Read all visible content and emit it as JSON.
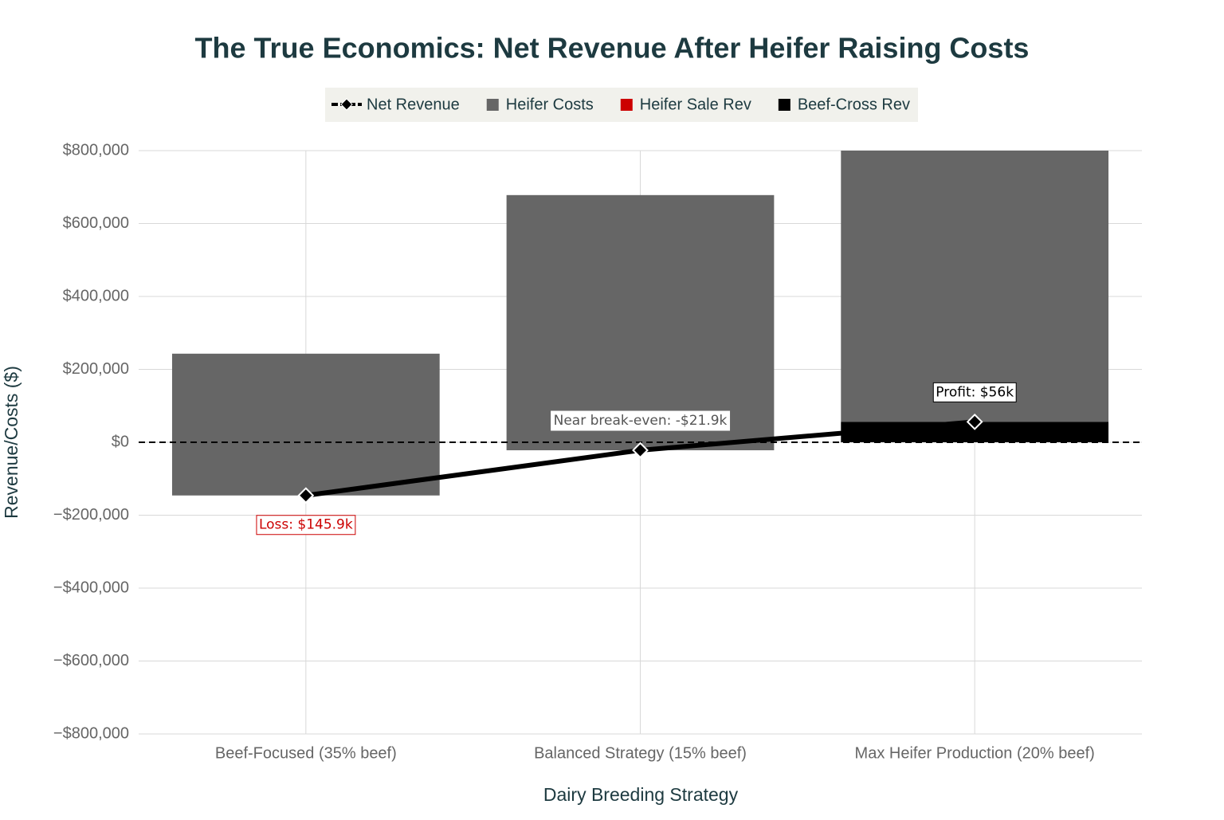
{
  "chart_data": {
    "type": "bar",
    "title": "The True Economics: Net Revenue After Heifer Raising Costs",
    "x_label": "Dairy Breeding Strategy",
    "y_label": "Revenue/Costs ($)",
    "categories": [
      "Beef-Focused (35% beef)",
      "Balanced Strategy (15% beef)",
      "Max Heifer Production (20% beef)"
    ],
    "series": [
      {
        "name": "Net Revenue",
        "type": "line",
        "color": "#000000",
        "values": [
          -145900,
          -21900,
          56000
        ]
      },
      {
        "name": "Heifer Costs",
        "type": "bar",
        "color": "#666666",
        "stack_on": "Net Revenue",
        "values": [
          388900,
          699900,
          744000
        ]
      },
      {
        "name": "Heifer Sale Rev",
        "type": "bar",
        "color": "#cc0000",
        "values": [
          0,
          0,
          0
        ]
      },
      {
        "name": "Beef-Cross Rev",
        "type": "bar",
        "color": "#000000",
        "values": [
          0,
          0,
          56000
        ]
      }
    ],
    "annotations": [
      {
        "text": "Loss: $145.9k",
        "index": 0,
        "position": "below",
        "color": "#cc0000",
        "border": "#cc0000"
      },
      {
        "text": "Near break-even: -$21.9k",
        "index": 1,
        "position": "above",
        "color": "#555555",
        "border": "#ffffff"
      },
      {
        "text": "Profit: $56k",
        "index": 2,
        "position": "above",
        "color": "#000000",
        "border": "#000000"
      }
    ],
    "ylim": [
      -800000,
      800000
    ],
    "yticks": [
      {
        "value": -800000,
        "label": "−$800,000"
      },
      {
        "value": -600000,
        "label": "−$600,000"
      },
      {
        "value": -400000,
        "label": "−$400,000"
      },
      {
        "value": -200000,
        "label": "−$200,000"
      },
      {
        "value": 0,
        "label": "$0"
      },
      {
        "value": 200000,
        "label": "$200,000"
      },
      {
        "value": 400000,
        "label": "$400,000"
      },
      {
        "value": 600000,
        "label": "$600,000"
      },
      {
        "value": 800000,
        "label": "$800,000"
      }
    ],
    "grid": true,
    "zeroline": "dashed",
    "legend": "top"
  }
}
